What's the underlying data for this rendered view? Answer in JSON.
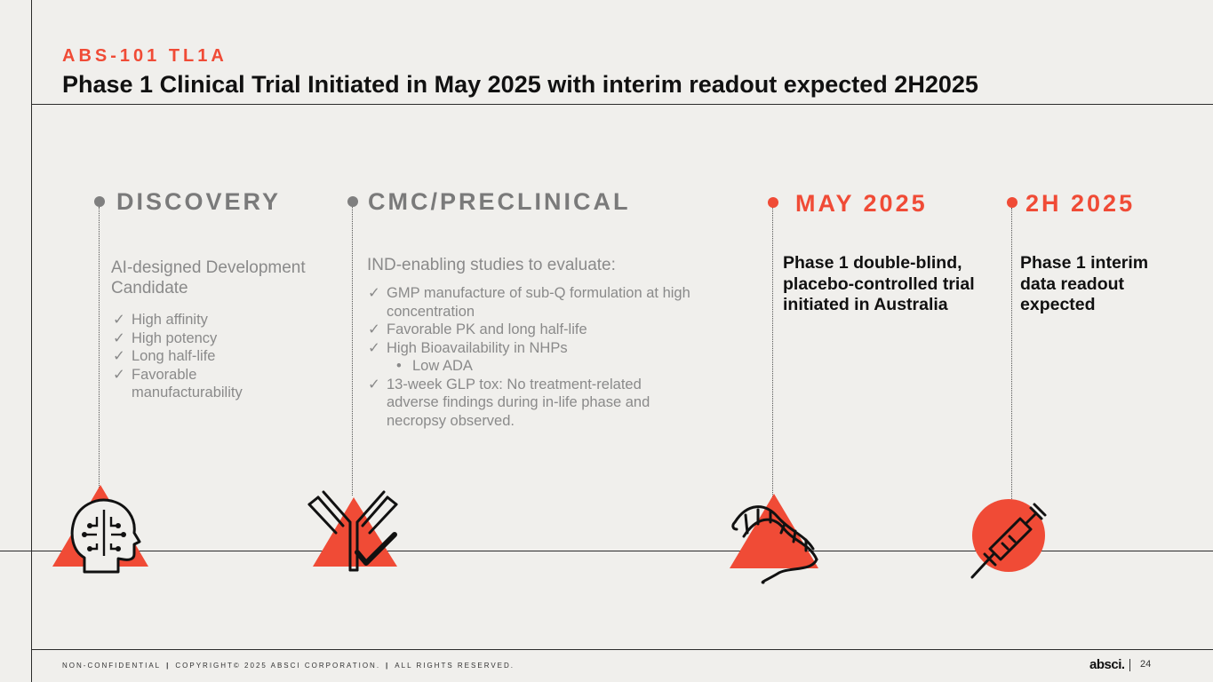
{
  "header": {
    "eyebrow": "ABS-101 TL1A",
    "title": "Phase 1 Clinical Trial Initiated in May 2025 with interim readout expected 2H2025"
  },
  "timeline": {
    "discovery": {
      "label": "DISCOVERY",
      "subhead": "AI-designed Development Candidate",
      "items": [
        "High affinity",
        "High potency",
        "Long half-life",
        "Favorable manufacturability"
      ]
    },
    "cmc": {
      "label": "CMC/PRECLINICAL",
      "subhead": "IND-enabling studies to evaluate:",
      "items": [
        "GMP manufacture of sub-Q formulation at high concentration",
        "Favorable PK and long half-life",
        "High Bioavailability in NHPs",
        "Low ADA",
        "13-week GLP tox: No treatment-related adverse findings during in-life phase and necropsy observed."
      ]
    },
    "may2025": {
      "label": "MAY 2025",
      "text": "Phase 1 double-blind, placebo-controlled trial initiated in Australia"
    },
    "h2_2025": {
      "label": "2H 2025",
      "text": "Phase 1 interim data readout expected"
    }
  },
  "footer": {
    "part1": "NON-CONFIDENTIAL",
    "part2": "COPYRIGHT© 2025 ABSCI CORPORATION.",
    "part3": "ALL RIGHTS RESERVED.",
    "logo": "absci.",
    "page": "24"
  },
  "colors": {
    "accent": "#f04b36",
    "background": "#f0efec",
    "grey_text": "#8a8a8a"
  },
  "icons": [
    "ai-head-icon",
    "antibody-check-icon",
    "dna-strand-icon",
    "syringe-icon"
  ]
}
